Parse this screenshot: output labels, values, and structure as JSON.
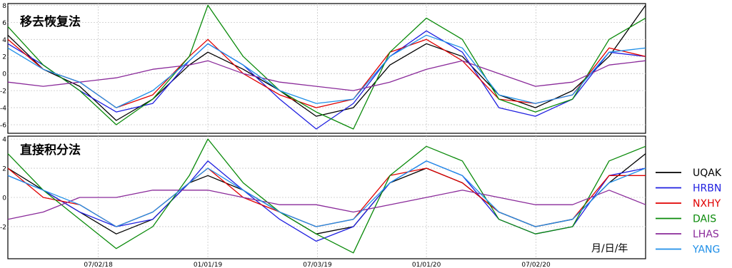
{
  "chart_data": {
    "type": "line",
    "x_axis": {
      "tick_labels": [
        "07/02/18",
        "01/01/19",
        "07/03/19",
        "01/01/20",
        "07/02/20"
      ],
      "tick_dates": [
        "2018-07-02",
        "2019-01-01",
        "2019-07-03",
        "2020-01-01",
        "2020-07-02"
      ],
      "range": [
        "2018-02-01",
        "2021-01-01"
      ],
      "label": "月/日/年"
    },
    "legend": {
      "placement": "right",
      "entries": [
        {
          "name": "UQAK",
          "color": "#000000"
        },
        {
          "name": "HRBN",
          "color": "#1f1fe0"
        },
        {
          "name": "NXHY",
          "color": "#e00000"
        },
        {
          "name": "DAIS",
          "color": "#0a8a0a"
        },
        {
          "name": "LHAS",
          "color": "#8a2a9a"
        },
        {
          "name": "YANG",
          "color": "#1f8fe8"
        }
      ]
    },
    "panels": [
      {
        "title": "移去恢复法",
        "ylim": [
          -7,
          8.2
        ],
        "yticks": [
          -6,
          -4,
          -2,
          0,
          2,
          4,
          6,
          8
        ],
        "grid": true,
        "x": [
          "2018-02",
          "2018-04",
          "2018-06",
          "2018-08",
          "2018-10",
          "2018-12",
          "2019-01",
          "2019-03",
          "2019-05",
          "2019-07",
          "2019-09",
          "2019-11",
          "2020-01",
          "2020-03",
          "2020-05",
          "2020-07",
          "2020-09",
          "2020-11",
          "2021-01"
        ],
        "series": [
          {
            "name": "UQAK",
            "values": [
              4.5,
              0.5,
              -1.5,
              -5.5,
              -3.0,
              1.0,
              2.5,
              0.5,
              -2.0,
              -5.0,
              -4.0,
              1.0,
              3.5,
              2.0,
              -2.5,
              -4.0,
              -2.0,
              2.0,
              8.0
            ]
          },
          {
            "name": "HRBN",
            "values": [
              3.5,
              1.0,
              -2.0,
              -4.5,
              -3.5,
              1.5,
              3.5,
              1.0,
              -3.0,
              -6.5,
              -3.5,
              2.0,
              5.0,
              2.5,
              -4.0,
              -5.0,
              -3.0,
              2.5,
              2.0
            ]
          },
          {
            "name": "NXHY",
            "values": [
              4.0,
              0.5,
              -1.0,
              -4.0,
              -2.5,
              2.0,
              4.0,
              0.0,
              -2.5,
              -4.0,
              -3.0,
              2.5,
              4.0,
              1.5,
              -3.0,
              -3.5,
              -2.5,
              3.0,
              2.0
            ]
          },
          {
            "name": "DAIS",
            "values": [
              5.5,
              1.0,
              -2.0,
              -6.0,
              -3.0,
              2.0,
              8.0,
              2.0,
              -2.0,
              -4.5,
              -6.5,
              2.5,
              6.5,
              4.0,
              -3.0,
              -4.5,
              -3.0,
              4.0,
              6.5
            ]
          },
          {
            "name": "LHAS",
            "values": [
              -1.0,
              -1.5,
              -1.0,
              -0.5,
              0.5,
              1.0,
              1.5,
              0.0,
              -1.0,
              -1.5,
              -2.0,
              -1.0,
              0.5,
              1.5,
              0.0,
              -1.5,
              -1.0,
              1.0,
              1.5
            ]
          },
          {
            "name": "YANG",
            "values": [
              3.0,
              0.5,
              -1.0,
              -4.0,
              -2.0,
              1.5,
              3.5,
              1.0,
              -2.0,
              -3.5,
              -3.0,
              2.0,
              4.5,
              3.0,
              -2.5,
              -3.5,
              -2.5,
              2.5,
              3.0
            ]
          }
        ]
      },
      {
        "title": "直接积分法",
        "ylim": [
          -4.2,
          4.2
        ],
        "yticks": [
          -2,
          0,
          2,
          4
        ],
        "grid": true,
        "x": [
          "2018-02",
          "2018-04",
          "2018-06",
          "2018-08",
          "2018-10",
          "2018-12",
          "2019-01",
          "2019-03",
          "2019-05",
          "2019-07",
          "2019-09",
          "2019-11",
          "2020-01",
          "2020-03",
          "2020-05",
          "2020-07",
          "2020-09",
          "2020-11",
          "2021-01"
        ],
        "series": [
          {
            "name": "UQAK",
            "values": [
              2.0,
              0.5,
              -1.0,
              -2.5,
              -1.5,
              1.0,
              1.5,
              0.5,
              -1.0,
              -2.5,
              -2.0,
              1.0,
              2.0,
              1.0,
              -1.0,
              -2.0,
              -1.5,
              1.0,
              3.0
            ]
          },
          {
            "name": "HRBN",
            "values": [
              1.5,
              0.5,
              -1.0,
              -2.0,
              -1.5,
              1.0,
              2.5,
              0.5,
              -1.5,
              -3.0,
              -2.0,
              1.0,
              2.5,
              1.5,
              -1.5,
              -2.5,
              -2.0,
              1.5,
              2.0
            ]
          },
          {
            "name": "NXHY",
            "values": [
              2.0,
              0.0,
              -0.5,
              -2.0,
              -1.0,
              1.0,
              2.0,
              0.0,
              -1.0,
              -2.0,
              -1.5,
              1.5,
              2.0,
              1.0,
              -1.0,
              -2.0,
              -1.5,
              1.5,
              1.5
            ]
          },
          {
            "name": "DAIS",
            "values": [
              3.0,
              0.5,
              -1.5,
              -3.5,
              -2.0,
              1.5,
              4.0,
              1.0,
              -1.0,
              -2.5,
              -3.8,
              1.5,
              3.5,
              2.5,
              -1.5,
              -2.5,
              -2.0,
              2.5,
              3.5
            ]
          },
          {
            "name": "LHAS",
            "values": [
              -1.5,
              -1.0,
              0.0,
              0.0,
              0.5,
              0.5,
              0.5,
              0.0,
              -0.5,
              -0.5,
              -1.0,
              -0.5,
              0.0,
              0.5,
              0.0,
              -0.5,
              -0.5,
              0.5,
              -0.5
            ]
          },
          {
            "name": "YANG",
            "values": [
              1.5,
              0.5,
              -0.5,
              -2.0,
              -1.0,
              1.0,
              2.0,
              0.5,
              -1.0,
              -2.0,
              -1.5,
              1.0,
              2.5,
              1.5,
              -1.0,
              -2.0,
              -1.5,
              1.0,
              2.0
            ]
          }
        ]
      }
    ]
  }
}
